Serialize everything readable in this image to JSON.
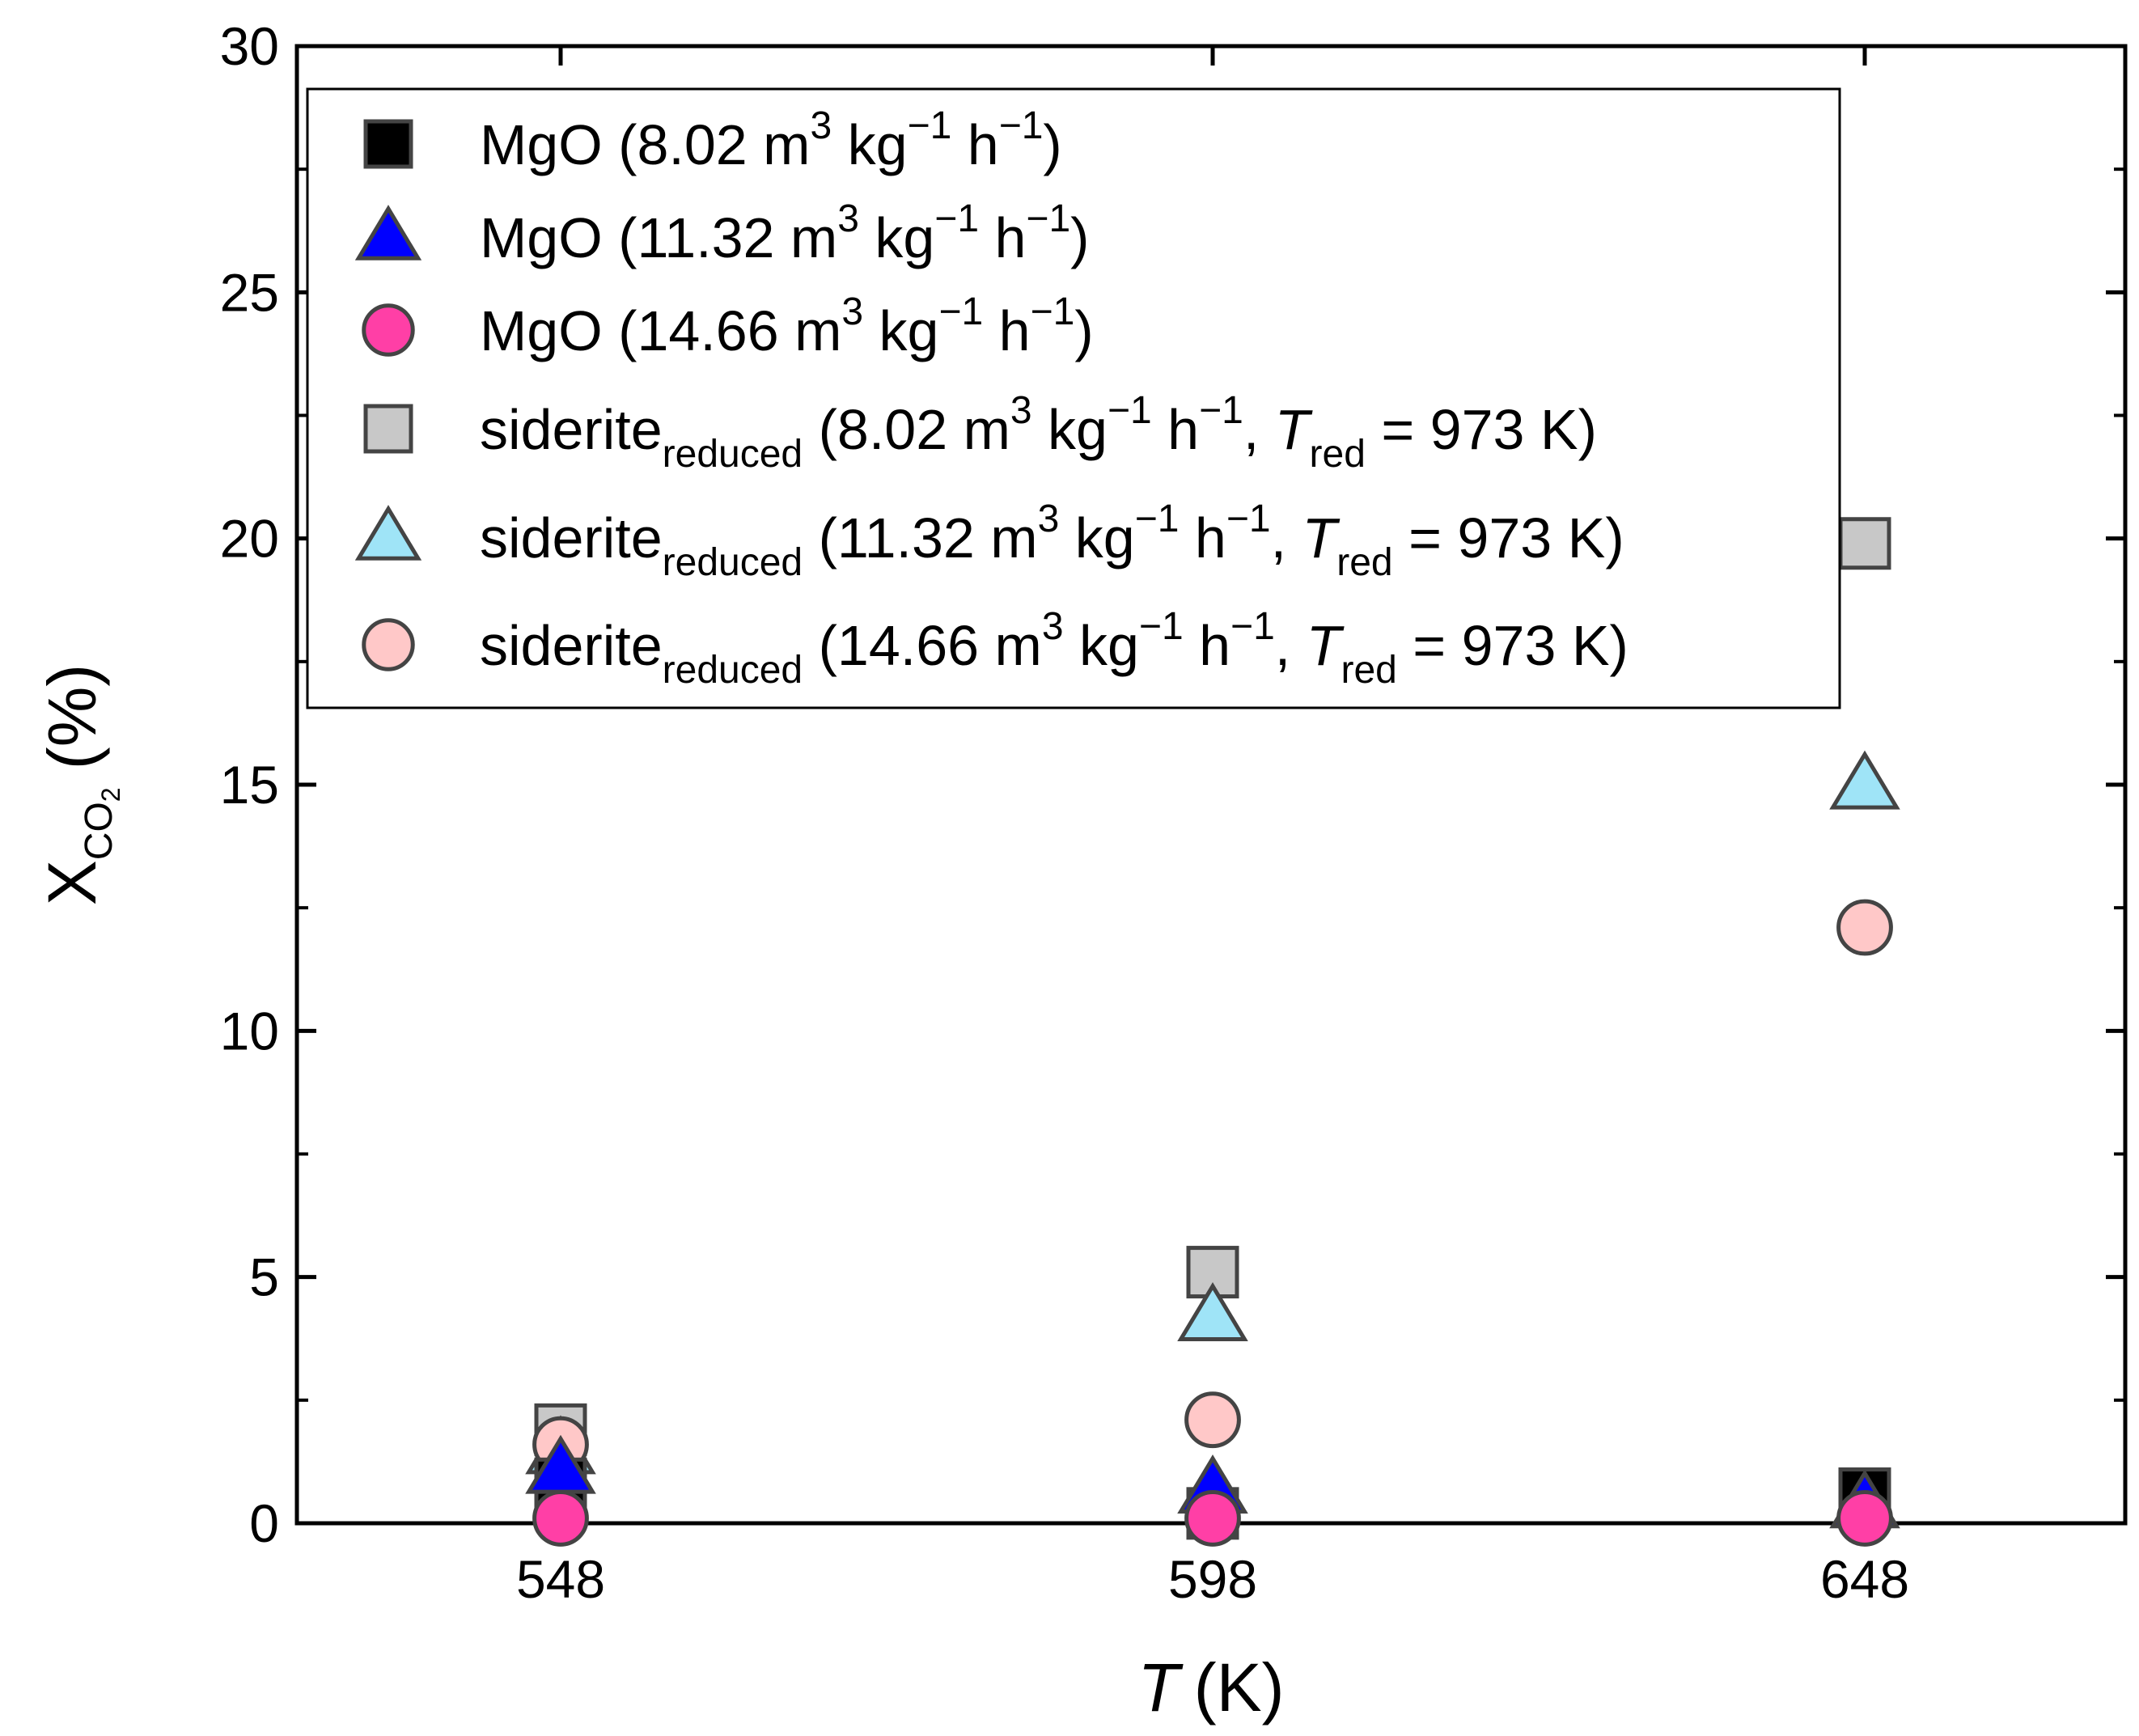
{
  "chart_data": {
    "type": "scatter",
    "title": "",
    "xlabel": {
      "symbol": "T",
      "unit": "(K)"
    },
    "ylabel": {
      "symbol": "X",
      "sub": "CO",
      "subsub": "2",
      "unit": "(%)"
    },
    "x_categories": [
      "548",
      "598",
      "648"
    ],
    "y_ticks": [
      "0",
      "5",
      "10",
      "15",
      "20",
      "25",
      "30"
    ],
    "ylim": [
      0,
      30
    ],
    "legend_position": "top-left",
    "series": [
      {
        "name": "MgO (8.02 m3 kg−1 h−1)",
        "label_main": "MgO",
        "space_velocity": "8.02",
        "t_red": "",
        "marker": "square",
        "fill": "#000000",
        "values": [
          0.8,
          0.2,
          0.6
        ]
      },
      {
        "name": "MgO (11.32 m3 kg−1 h−1)",
        "label_main": "MgO",
        "space_velocity": "11.32",
        "t_red": "",
        "marker": "triangle",
        "fill": "#0000ff",
        "values": [
          1.1,
          0.7,
          0.4
        ]
      },
      {
        "name": "MgO (14.66 m3 kg−1 h−1)",
        "label_main": "MgO",
        "space_velocity": "14.66",
        "t_red": "",
        "marker": "circle",
        "fill": "#ff3fa6",
        "values": [
          0.1,
          0.1,
          0.1
        ]
      },
      {
        "name": "siderite reduced (8.02 m3 kg−1 h−1, Tred = 973 K)",
        "label_main": "siderite",
        "space_velocity": "8.02",
        "t_red": "973",
        "marker": "square",
        "fill": "#c8c8c8",
        "values": [
          1.9,
          5.1,
          19.9
        ]
      },
      {
        "name": "siderite reduced (11.32 m3 kg−1 h−1, Tred = 973 K)",
        "label_main": "siderite",
        "space_velocity": "11.32",
        "t_red": "973",
        "marker": "triangle",
        "fill": "#9fe4f7",
        "values": [
          1.5,
          4.2,
          15.0
        ]
      },
      {
        "name": "siderite reduced (14.66 m3 kg−1 h−1, Tred = 973 K)",
        "label_main": "siderite",
        "space_velocity": "14.66",
        "t_red": "973",
        "marker": "circle",
        "fill": "#ffc8c8",
        "values": [
          1.6,
          2.1,
          12.1
        ]
      }
    ],
    "legend_text": {
      "open_paren": "(",
      "unit_m": "m",
      "sup3": "3",
      "kg": "kg",
      "sup_neg1": "−1",
      "h": "h",
      "close_paren": ")",
      "comma": ",",
      "reduced_sub": "reduced",
      "t_symbol": "T",
      "red_sub": "red",
      "equals_k": "= 973 K"
    },
    "colors": {
      "axis": "#000000",
      "marker_edge": "#444444"
    }
  }
}
